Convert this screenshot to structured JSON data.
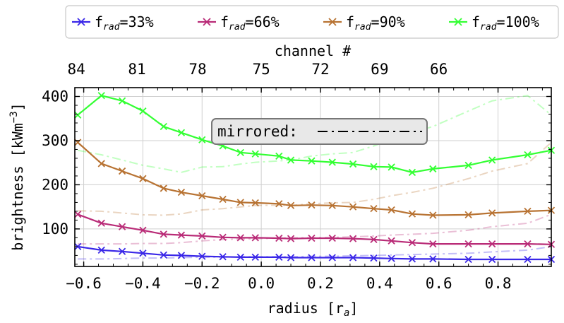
{
  "chart_data": {
    "type": "line",
    "xlabel": "radius [r",
    "xlabel_sub": "a",
    "xlabel_end": "]",
    "ylabel": "brightness [kWm",
    "ylabel_sup": "−3",
    "ylabel_end": "]",
    "top_axis_label": "channel #",
    "xlim": [
      -0.63,
      0.98
    ],
    "ylim": [
      15,
      420
    ],
    "x_ticks": [
      "−0.6",
      "−0.4",
      "−0.2",
      "0.0",
      "0.2",
      "0.4",
      "0.6",
      "0.8"
    ],
    "x_tick_values": [
      -0.6,
      -0.4,
      -0.2,
      0.0,
      0.2,
      0.4,
      0.6,
      0.8
    ],
    "y_ticks": [
      "100",
      "200",
      "300",
      "400"
    ],
    "y_tick_values": [
      100,
      200,
      300,
      400
    ],
    "top_ticks": [
      "84",
      "81",
      "78",
      "75",
      "72",
      "69",
      "66"
    ],
    "top_tick_values": [
      -0.625,
      -0.42,
      -0.215,
      0.0,
      0.2,
      0.4,
      0.6
    ],
    "grid": true,
    "legend_position": "above",
    "annotation": "mirrored: ",
    "x": [
      -0.62,
      -0.54,
      -0.47,
      -0.4,
      -0.33,
      -0.27,
      -0.2,
      -0.13,
      -0.07,
      -0.02,
      0.06,
      0.1,
      0.17,
      0.24,
      0.31,
      0.38,
      0.44,
      0.51,
      0.58,
      0.7,
      0.78,
      0.9,
      0.98
    ],
    "series": [
      {
        "name_main": "f",
        "name_sub": "rad",
        "name_tail": "=33%",
        "color": "#3a27e8",
        "values": [
          60,
          52,
          49,
          45,
          41,
          40,
          38,
          37,
          36,
          36,
          36,
          35,
          35,
          35,
          35,
          34,
          33,
          32,
          32,
          31,
          31,
          31,
          31
        ],
        "mirrored": [
          32,
          32,
          33,
          34,
          34,
          35,
          36,
          36,
          37,
          37,
          37,
          37,
          38,
          38,
          39,
          40,
          41,
          42,
          43,
          45,
          48,
          52,
          60
        ]
      },
      {
        "name_main": "f",
        "name_sub": "rad",
        "name_tail": "=66%",
        "color": "#b92b77",
        "values": [
          133,
          113,
          105,
          97,
          88,
          86,
          84,
          81,
          80,
          80,
          79,
          78,
          79,
          79,
          78,
          76,
          73,
          69,
          66,
          66,
          66,
          66,
          65
        ],
        "mirrored": [
          66,
          66,
          66,
          67,
          67,
          69,
          73,
          76,
          77,
          78,
          79,
          80,
          80,
          81,
          82,
          84,
          86,
          88,
          90,
          97,
          105,
          113,
          133
        ]
      },
      {
        "name_main": "f",
        "name_sub": "rad",
        "name_tail": "=90%",
        "color": "#b87333",
        "values": [
          296,
          248,
          231,
          214,
          192,
          183,
          175,
          167,
          160,
          159,
          157,
          153,
          154,
          153,
          150,
          146,
          143,
          134,
          131,
          132,
          136,
          140,
          142
        ],
        "mirrored": [
          141,
          140,
          136,
          132,
          131,
          134,
          143,
          146,
          150,
          153,
          154,
          153,
          157,
          159,
          160,
          167,
          175,
          183,
          192,
          214,
          231,
          248,
          296
        ]
      },
      {
        "name_main": "f",
        "name_sub": "rad",
        "name_tail": "=100%",
        "color": "#33ff33",
        "values": [
          358,
          402,
          390,
          367,
          332,
          318,
          302,
          288,
          273,
          270,
          265,
          256,
          254,
          251,
          247,
          241,
          240,
          228,
          236,
          244,
          256,
          268,
          278
        ],
        "mirrored": [
          278,
          268,
          256,
          244,
          236,
          228,
          240,
          241,
          247,
          251,
          254,
          256,
          265,
          270,
          273,
          288,
          302,
          318,
          332,
          367,
          390,
          402,
          358
        ]
      }
    ]
  }
}
